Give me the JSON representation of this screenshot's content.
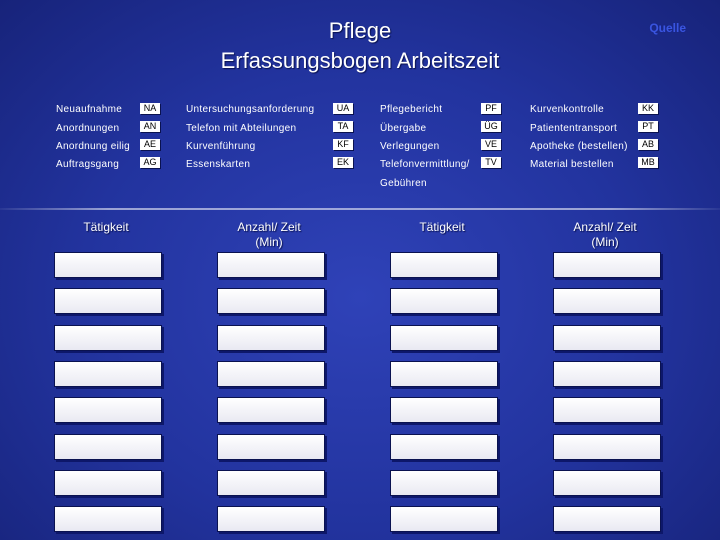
{
  "header": {
    "title_line1": "Pflege",
    "title_line2": "Erfassungsbogen Arbeitszeit",
    "source_label": "Quelle"
  },
  "codes": [
    [
      {
        "label": "Neuaufnahme",
        "code": "NA"
      },
      {
        "label": "Untersuchungsanforderung",
        "code": "UA"
      },
      {
        "label": "Pflegebericht",
        "code": "PF"
      },
      {
        "label": "Kurvenkontrolle",
        "code": "KK"
      }
    ],
    [
      {
        "label": "Anordnungen",
        "code": "AN"
      },
      {
        "label": "Telefon mit Abteilungen",
        "code": "TA"
      },
      {
        "label": "Übergabe",
        "code": "ÜG"
      },
      {
        "label": "Patiententransport",
        "code": "PT"
      }
    ],
    [
      {
        "label": "Anordnung eilig",
        "code": "AE"
      },
      {
        "label": "Kurvenführung",
        "code": "KF"
      },
      {
        "label": "Verlegungen",
        "code": "VE"
      },
      {
        "label": "Apotheke (bestellen)",
        "code": "AB"
      }
    ],
    [
      {
        "label": "Auftragsgang",
        "code": "AG"
      },
      {
        "label": "Essenskarten",
        "code": "EK"
      },
      {
        "label": "Telefonvermittlung/",
        "code": "TV"
      },
      {
        "label": "Material bestellen",
        "code": "MB"
      }
    ]
  ],
  "extra_label": "Gebühren",
  "table": {
    "headers": [
      {
        "line1": "Tätigkeit",
        "line2": ""
      },
      {
        "line1": "Anzahl/ Zeit",
        "line2": "(Min)"
      },
      {
        "line1": "Tätigkeit",
        "line2": ""
      },
      {
        "line1": "Anzahl/ Zeit",
        "line2": "(Min)"
      }
    ],
    "rows": 8
  },
  "colors": {
    "background": "#22339e",
    "source_label": "#3a55e0",
    "cell": "#ffffff"
  }
}
